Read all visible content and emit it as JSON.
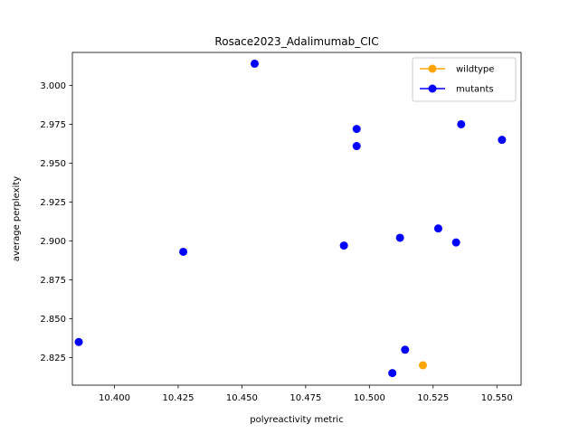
{
  "chart_data": {
    "type": "scatter",
    "title": "Rosace2023_Adalimumab_CIC",
    "xlabel": "polyreactivity metric",
    "ylabel": "average perplexity",
    "xlim": [
      10.3835,
      10.5595
    ],
    "ylim": [
      2.8072,
      3.0212
    ],
    "xticks": [
      10.4,
      10.425,
      10.45,
      10.475,
      10.5,
      10.525,
      10.55
    ],
    "xtick_labels": [
      "10.400",
      "10.425",
      "10.450",
      "10.475",
      "10.500",
      "10.525",
      "10.550"
    ],
    "yticks": [
      2.825,
      2.85,
      2.875,
      2.9,
      2.925,
      2.95,
      2.975,
      3.0
    ],
    "ytick_labels": [
      "2.825",
      "2.850",
      "2.875",
      "2.900",
      "2.925",
      "2.950",
      "2.975",
      "3.000"
    ],
    "grid": false,
    "legend": {
      "position": "top-right"
    },
    "series": [
      {
        "name": "wildtype",
        "color": "#ffa500",
        "points": [
          {
            "x": 10.521,
            "y": 2.82
          }
        ]
      },
      {
        "name": "mutants",
        "color": "#0000ff",
        "points": [
          {
            "x": 10.386,
            "y": 2.835
          },
          {
            "x": 10.427,
            "y": 2.893
          },
          {
            "x": 10.455,
            "y": 3.014
          },
          {
            "x": 10.49,
            "y": 2.897
          },
          {
            "x": 10.495,
            "y": 2.972
          },
          {
            "x": 10.495,
            "y": 2.961
          },
          {
            "x": 10.509,
            "y": 2.815
          },
          {
            "x": 10.512,
            "y": 2.902
          },
          {
            "x": 10.514,
            "y": 2.83
          },
          {
            "x": 10.527,
            "y": 2.908
          },
          {
            "x": 10.534,
            "y": 2.899
          },
          {
            "x": 10.536,
            "y": 2.975
          },
          {
            "x": 10.552,
            "y": 2.965
          }
        ]
      }
    ]
  }
}
